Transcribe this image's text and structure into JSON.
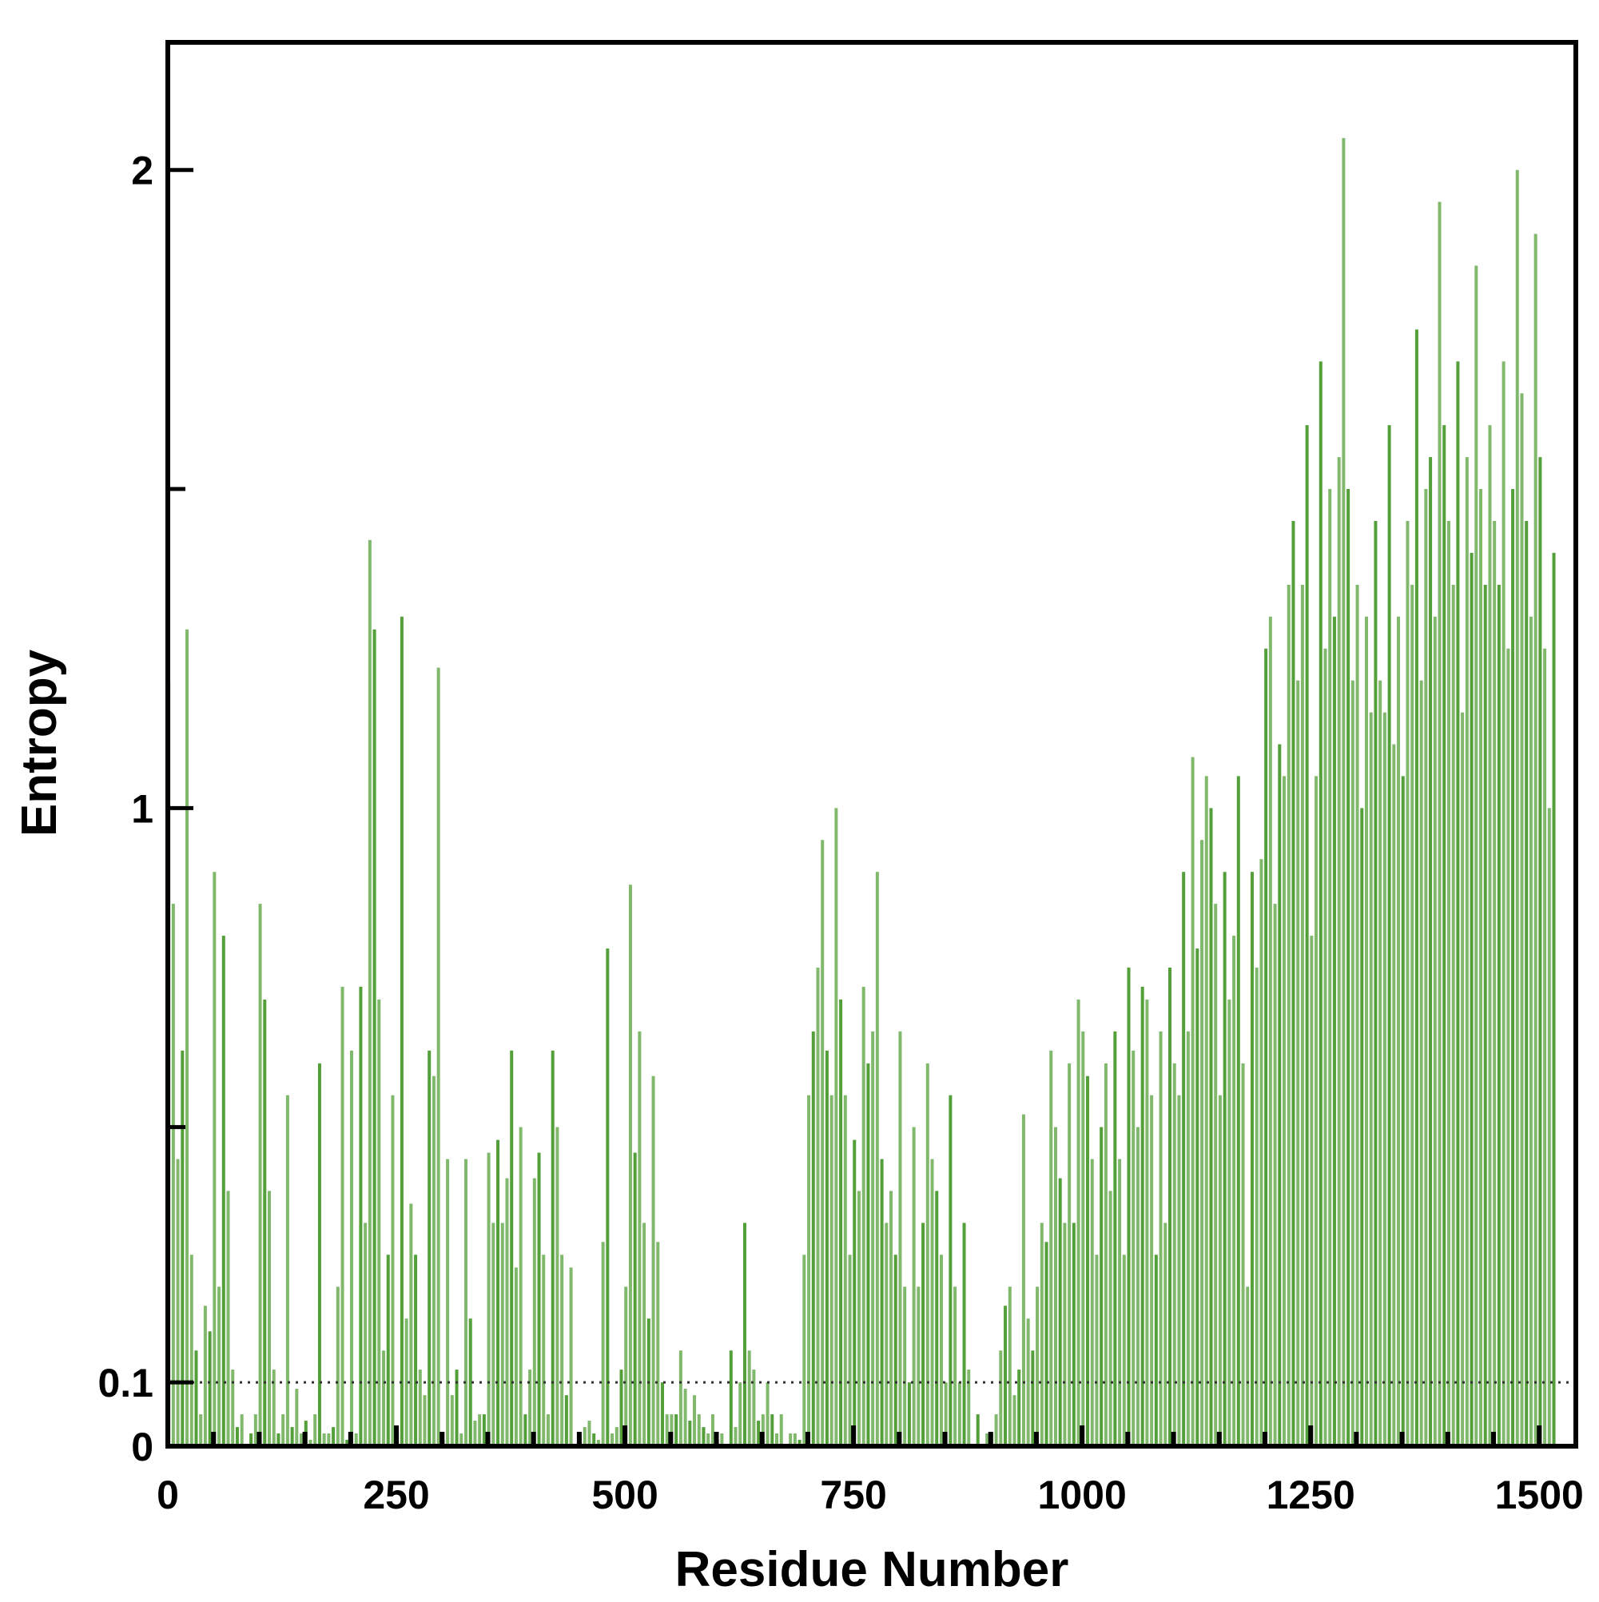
{
  "chart_data": {
    "type": "bar",
    "title": "",
    "xlabel": "Residue Number",
    "ylabel": "Entropy",
    "xlim": [
      0,
      1540
    ],
    "ylim": [
      0,
      2.2
    ],
    "x_ticks_labeled": [
      0,
      250,
      500,
      750,
      1000,
      1250,
      1500
    ],
    "x_ticks_minor_step": 50,
    "y_ticks": [
      {
        "value": 0,
        "label": "0"
      },
      {
        "value": 0.1,
        "label": "0.1"
      },
      {
        "value": 1,
        "label": "1"
      },
      {
        "value": 2,
        "label": "2"
      }
    ],
    "y_unlabeled_ticks": [
      0.5,
      1.5
    ],
    "reference_line": {
      "value": 0.1,
      "style": "dotted"
    },
    "grid": false,
    "bar_color": "#4a9a2e",
    "series": [
      {
        "x_start": 1,
        "x_step": 5,
        "values": [
          1.2,
          0.85,
          0.45,
          0.62,
          1.28,
          0.3,
          0.15,
          0.05,
          0.22,
          0.18,
          0.9,
          0.25,
          0.8,
          0.4,
          0.12,
          0.03,
          0.05,
          0.0,
          0.02,
          0.05,
          0.85,
          0.7,
          0.4,
          0.12,
          0.02,
          0.05,
          0.55,
          0.03,
          0.09,
          0.02,
          0.04,
          0.01,
          0.05,
          0.6,
          0.02,
          0.02,
          0.03,
          0.25,
          0.72,
          0.01,
          0.62,
          0.02,
          0.72,
          0.35,
          1.42,
          1.28,
          0.7,
          0.15,
          0.3,
          0.55,
          0.02,
          1.3,
          0.2,
          0.38,
          0.3,
          0.12,
          0.08,
          0.62,
          0.58,
          1.22,
          0.01,
          0.45,
          0.08,
          0.12,
          0.02,
          0.45,
          0.2,
          0.04,
          0.05,
          0.05,
          0.46,
          0.35,
          0.48,
          0.35,
          0.42,
          0.62,
          0.28,
          0.5,
          0.05,
          0.12,
          0.42,
          0.46,
          0.3,
          0.05,
          0.62,
          0.5,
          0.3,
          0.08,
          0.28,
          0.0,
          0.02,
          0.03,
          0.04,
          0.02,
          0.01,
          0.32,
          0.78,
          0.02,
          0.03,
          0.12,
          0.25,
          0.88,
          0.46,
          0.65,
          0.35,
          0.2,
          0.58,
          0.32,
          0.1,
          0.05,
          0.05,
          0.05,
          0.15,
          0.09,
          0.04,
          0.08,
          0.05,
          0.03,
          0.02,
          0.05,
          0.01,
          0.02,
          0.0,
          0.15,
          0.03,
          0.1,
          0.35,
          0.15,
          0.12,
          0.04,
          0.05,
          0.1,
          0.05,
          0.02,
          0.05,
          0.0,
          0.02,
          0.02,
          0.01,
          0.3,
          0.55,
          0.65,
          0.75,
          0.95,
          0.62,
          0.55,
          1.0,
          0.7,
          0.55,
          0.3,
          0.48,
          0.4,
          0.72,
          0.6,
          0.65,
          0.9,
          0.45,
          0.35,
          0.4,
          0.3,
          0.65,
          0.25,
          0.1,
          0.5,
          0.25,
          0.35,
          0.6,
          0.45,
          0.4,
          0.3,
          0.1,
          0.55,
          0.25,
          0.1,
          0.35,
          0.12,
          0.0,
          0.05,
          0.0,
          0.02,
          0.02,
          0.05,
          0.15,
          0.22,
          0.25,
          0.08,
          0.12,
          0.52,
          0.2,
          0.15,
          0.25,
          0.35,
          0.32,
          0.62,
          0.5,
          0.42,
          0.35,
          0.6,
          0.35,
          0.7,
          0.65,
          0.58,
          0.45,
          0.3,
          0.5,
          0.6,
          0.4,
          0.65,
          0.45,
          0.3,
          0.75,
          0.62,
          0.5,
          0.72,
          0.7,
          0.55,
          0.3,
          0.65,
          0.35,
          0.75,
          0.6,
          0.55,
          0.9,
          0.65,
          1.08,
          0.78,
          0.95,
          1.05,
          1.0,
          0.85,
          0.55,
          0.9,
          0.7,
          0.8,
          1.05,
          0.6,
          0.25,
          0.9,
          0.75,
          0.92,
          1.25,
          1.3,
          0.85,
          1.1,
          1.05,
          1.35,
          1.45,
          1.2,
          1.35,
          1.6,
          0.8,
          1.05,
          1.7,
          1.25,
          1.5,
          1.3,
          1.55,
          2.05,
          1.5,
          1.2,
          1.35,
          1.0,
          1.3,
          1.15,
          1.45,
          1.2,
          1.15,
          1.6,
          1.1,
          1.3,
          1.05,
          1.45,
          1.35,
          1.75,
          1.2,
          1.5,
          1.55,
          1.3,
          1.95,
          1.6,
          1.45,
          1.35,
          1.7,
          1.15,
          1.55,
          1.4,
          1.85,
          1.5,
          1.35,
          1.6,
          1.45,
          1.35,
          1.7,
          1.25,
          1.5,
          2.0,
          1.65,
          1.45,
          1.3,
          1.9,
          1.55,
          1.25,
          1.0,
          1.4
        ]
      }
    ]
  }
}
